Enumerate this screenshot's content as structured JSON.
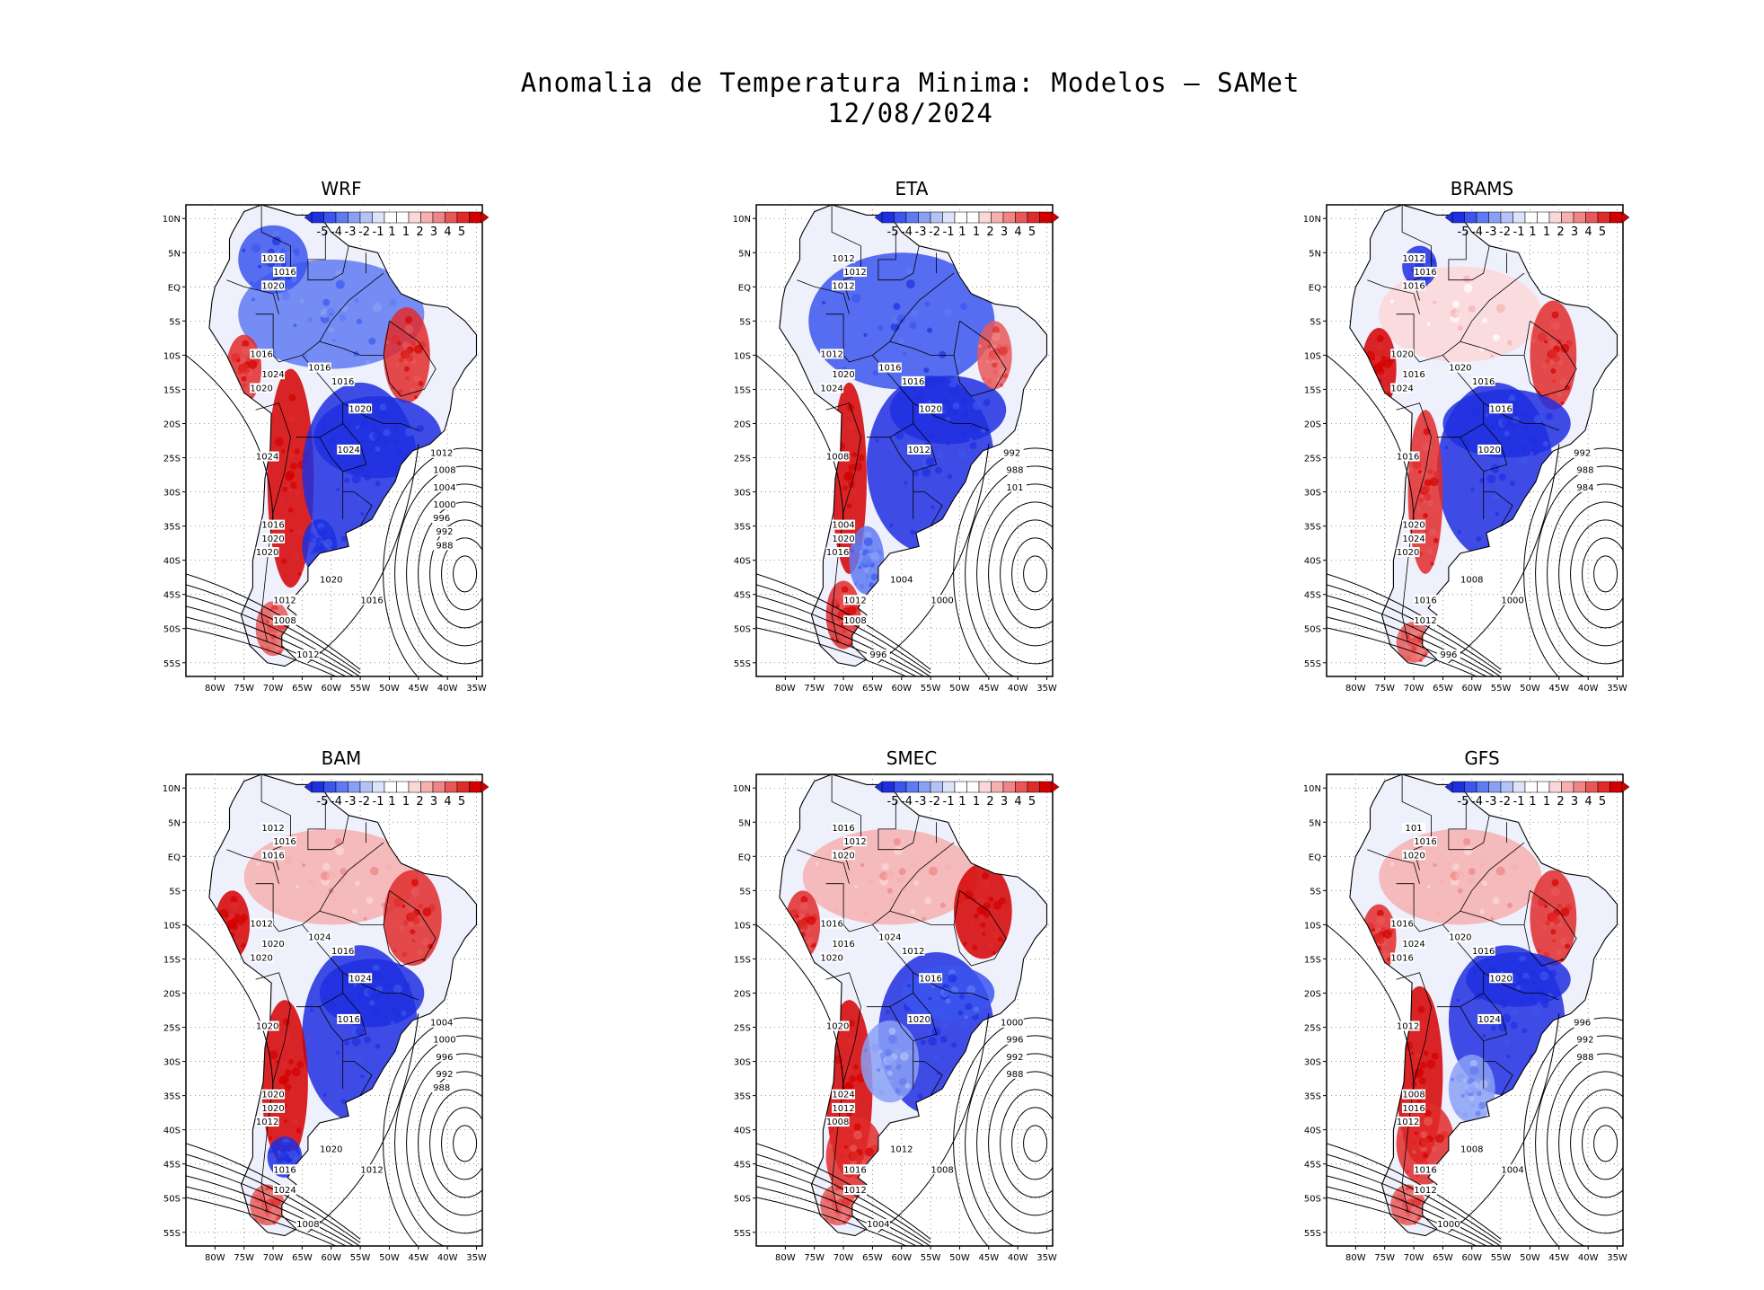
{
  "figure": {
    "title": "Anomalia de Temperatura Minima: Modelos — SAMet",
    "date": "12/08/2024"
  },
  "colorbar": {
    "labels": [
      "-5",
      "-4",
      "-3",
      "-2",
      "-1",
      "1",
      "1",
      "2",
      "3",
      "4",
      "5"
    ],
    "colors": [
      "#1f2fe0",
      "#3b55ee",
      "#5f7af2",
      "#8aa0f5",
      "#b4c2f8",
      "#dde3fb",
      "#ffffff",
      "#ffffff",
      "#fbd8d8",
      "#f6b0b0",
      "#ef8585",
      "#e85858",
      "#e02b2b",
      "#d40000"
    ]
  },
  "axes": {
    "lat_labels": [
      "10N",
      "5N",
      "EQ",
      "5S",
      "10S",
      "15S",
      "20S",
      "25S",
      "30S",
      "35S",
      "40S",
      "45S",
      "50S",
      "55S"
    ],
    "lon_labels": [
      "80W",
      "75W",
      "70W",
      "65W",
      "60W",
      "55W",
      "50W",
      "45W",
      "40W",
      "35W"
    ]
  },
  "panels": [
    {
      "model": "WRF",
      "isobar_labels": [
        "1016",
        "1016",
        "1020",
        "1016",
        "1016",
        "1024",
        "1020",
        "1016",
        "1020",
        "1024",
        "1024",
        "1016",
        "1020",
        "1020",
        "1012",
        "1008",
        "1020",
        "1016",
        "1012",
        "1012",
        "1008",
        "1004",
        "1000",
        "996",
        "992",
        "988"
      ]
    },
    {
      "model": "ETA",
      "isobar_labels": [
        "1012",
        "1012",
        "1012",
        "1012",
        "1016",
        "1020",
        "1024",
        "1016",
        "1020",
        "1012",
        "1008",
        "1004",
        "1020",
        "1016",
        "1012",
        "1008",
        "1004",
        "1000",
        "996",
        "992",
        "988",
        "101"
      ]
    },
    {
      "model": "BRAMS",
      "isobar_labels": [
        "1012",
        "1016",
        "1016",
        "1020",
        "1016",
        "1016",
        "1024",
        "1020",
        "1016",
        "1020",
        "1016",
        "1020",
        "1024",
        "1020",
        "1016",
        "1012",
        "1008",
        "1000",
        "996",
        "992",
        "988",
        "984"
      ]
    },
    {
      "model": "BAM",
      "isobar_labels": [
        "1012",
        "1016",
        "1016",
        "1012",
        "1016",
        "1020",
        "1020",
        "1024",
        "1024",
        "1016",
        "1020",
        "1020",
        "1020",
        "1012",
        "1016",
        "1024",
        "1020",
        "1012",
        "1008",
        "1004",
        "1000",
        "996",
        "992",
        "988"
      ]
    },
    {
      "model": "SMEC",
      "isobar_labels": [
        "1016",
        "1012",
        "1020",
        "1016",
        "1012",
        "1016",
        "1020",
        "1024",
        "1016",
        "1020",
        "1020",
        "1024",
        "1012",
        "1008",
        "1016",
        "1012",
        "1012",
        "1008",
        "1004",
        "1000",
        "996",
        "992",
        "988"
      ]
    },
    {
      "model": "GFS",
      "isobar_labels": [
        "101",
        "1016",
        "1020",
        "1016",
        "1016",
        "1024",
        "1016",
        "1020",
        "1020",
        "1024",
        "1012",
        "1008",
        "1016",
        "1012",
        "1016",
        "1012",
        "1008",
        "1004",
        "1000",
        "996",
        "992",
        "988"
      ]
    }
  ]
}
